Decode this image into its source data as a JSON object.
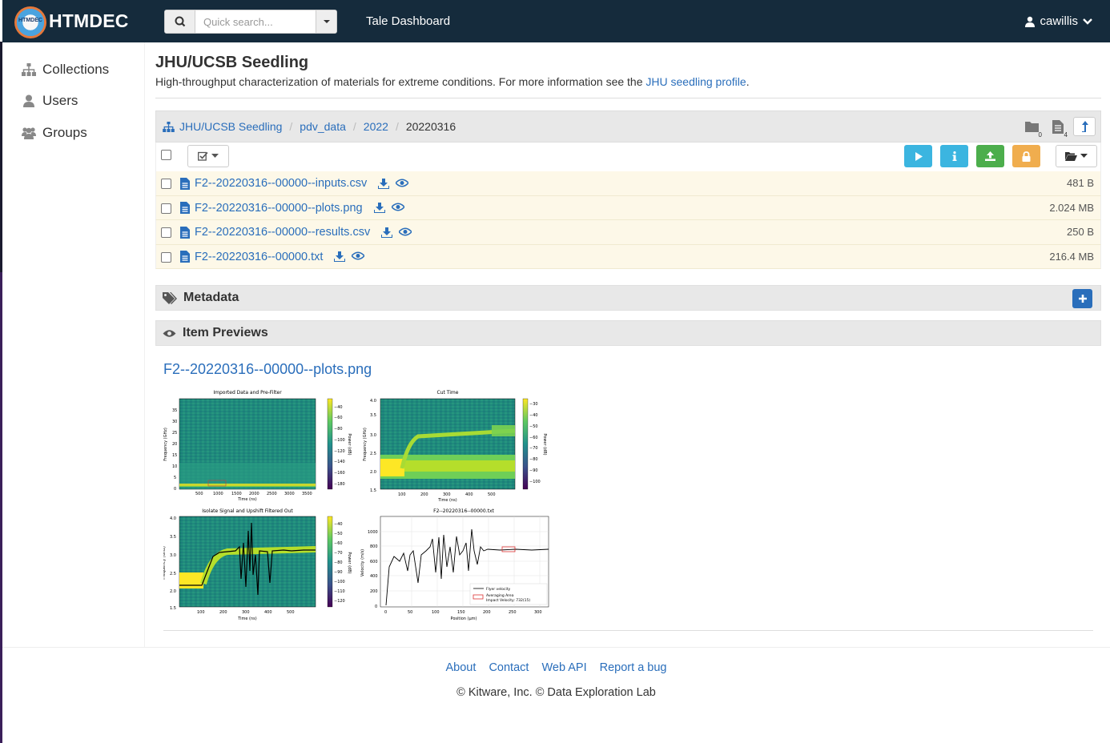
{
  "header": {
    "brand": "HTMDEC",
    "logo_text": "HTMDEC",
    "search_placeholder": "Quick search...",
    "tale_dashboard": "Tale Dashboard",
    "username": "cawillis"
  },
  "sidebar": {
    "items": [
      {
        "label": "Collections",
        "icon": "sitemap-icon"
      },
      {
        "label": "Users",
        "icon": "user-icon"
      },
      {
        "label": "Groups",
        "icon": "users-icon"
      }
    ]
  },
  "collection": {
    "title": "JHU/UCSB Seedling",
    "description": "High-throughput characterization of materials for extreme conditions. For more information see the ",
    "link_text": "JHU seedling profile",
    "description_end": "."
  },
  "breadcrumb": {
    "items": [
      "JHU/UCSB Seedling",
      "pdv_data",
      "2022"
    ],
    "current": "20220316",
    "folder_count": "0",
    "item_count": "4"
  },
  "files": [
    {
      "name": "F2--20220316--00000--inputs.csv",
      "size": "481 B"
    },
    {
      "name": "F2--20220316--00000--plots.png",
      "size": "2.024 MB"
    },
    {
      "name": "F2--20220316--00000--results.csv",
      "size": "250 B"
    },
    {
      "name": "F2--20220316--00000.txt",
      "size": "216.4 MB"
    }
  ],
  "panels": {
    "metadata": "Metadata",
    "previews": "Item Previews"
  },
  "preview": {
    "name": "F2--20220316--00000--plots.png",
    "plot_titles": [
      "Imported Data and Pre-Filter",
      "Cut Time",
      "Isolate Signal and Upshift Filtered Out",
      "F2--20220316--00000.txt"
    ],
    "xlabel_time": "Time (ns)",
    "xlabel_position": "Position (µm)",
    "ylabel_freq": "Frequency (GHz)",
    "ylabel_power": "Power (dB)",
    "ylabel_velocity": "Velocity (m/s)",
    "legend": [
      "Flyer velocity",
      "Averaging Area",
      "Impact Velocity: 732(15)"
    ]
  },
  "footer": {
    "links": [
      "About",
      "Contact",
      "Web API",
      "Report a bug"
    ],
    "copyright": "© Kitware, Inc. © Data Exploration Lab"
  },
  "colors": {
    "header_bg": "#152b3c",
    "link": "#2a6ebb",
    "file_row_bg": "#fdf8e8",
    "btn_info": "#3bb5e0",
    "btn_success": "#4cae4c",
    "btn_warning": "#f0ad4e"
  }
}
